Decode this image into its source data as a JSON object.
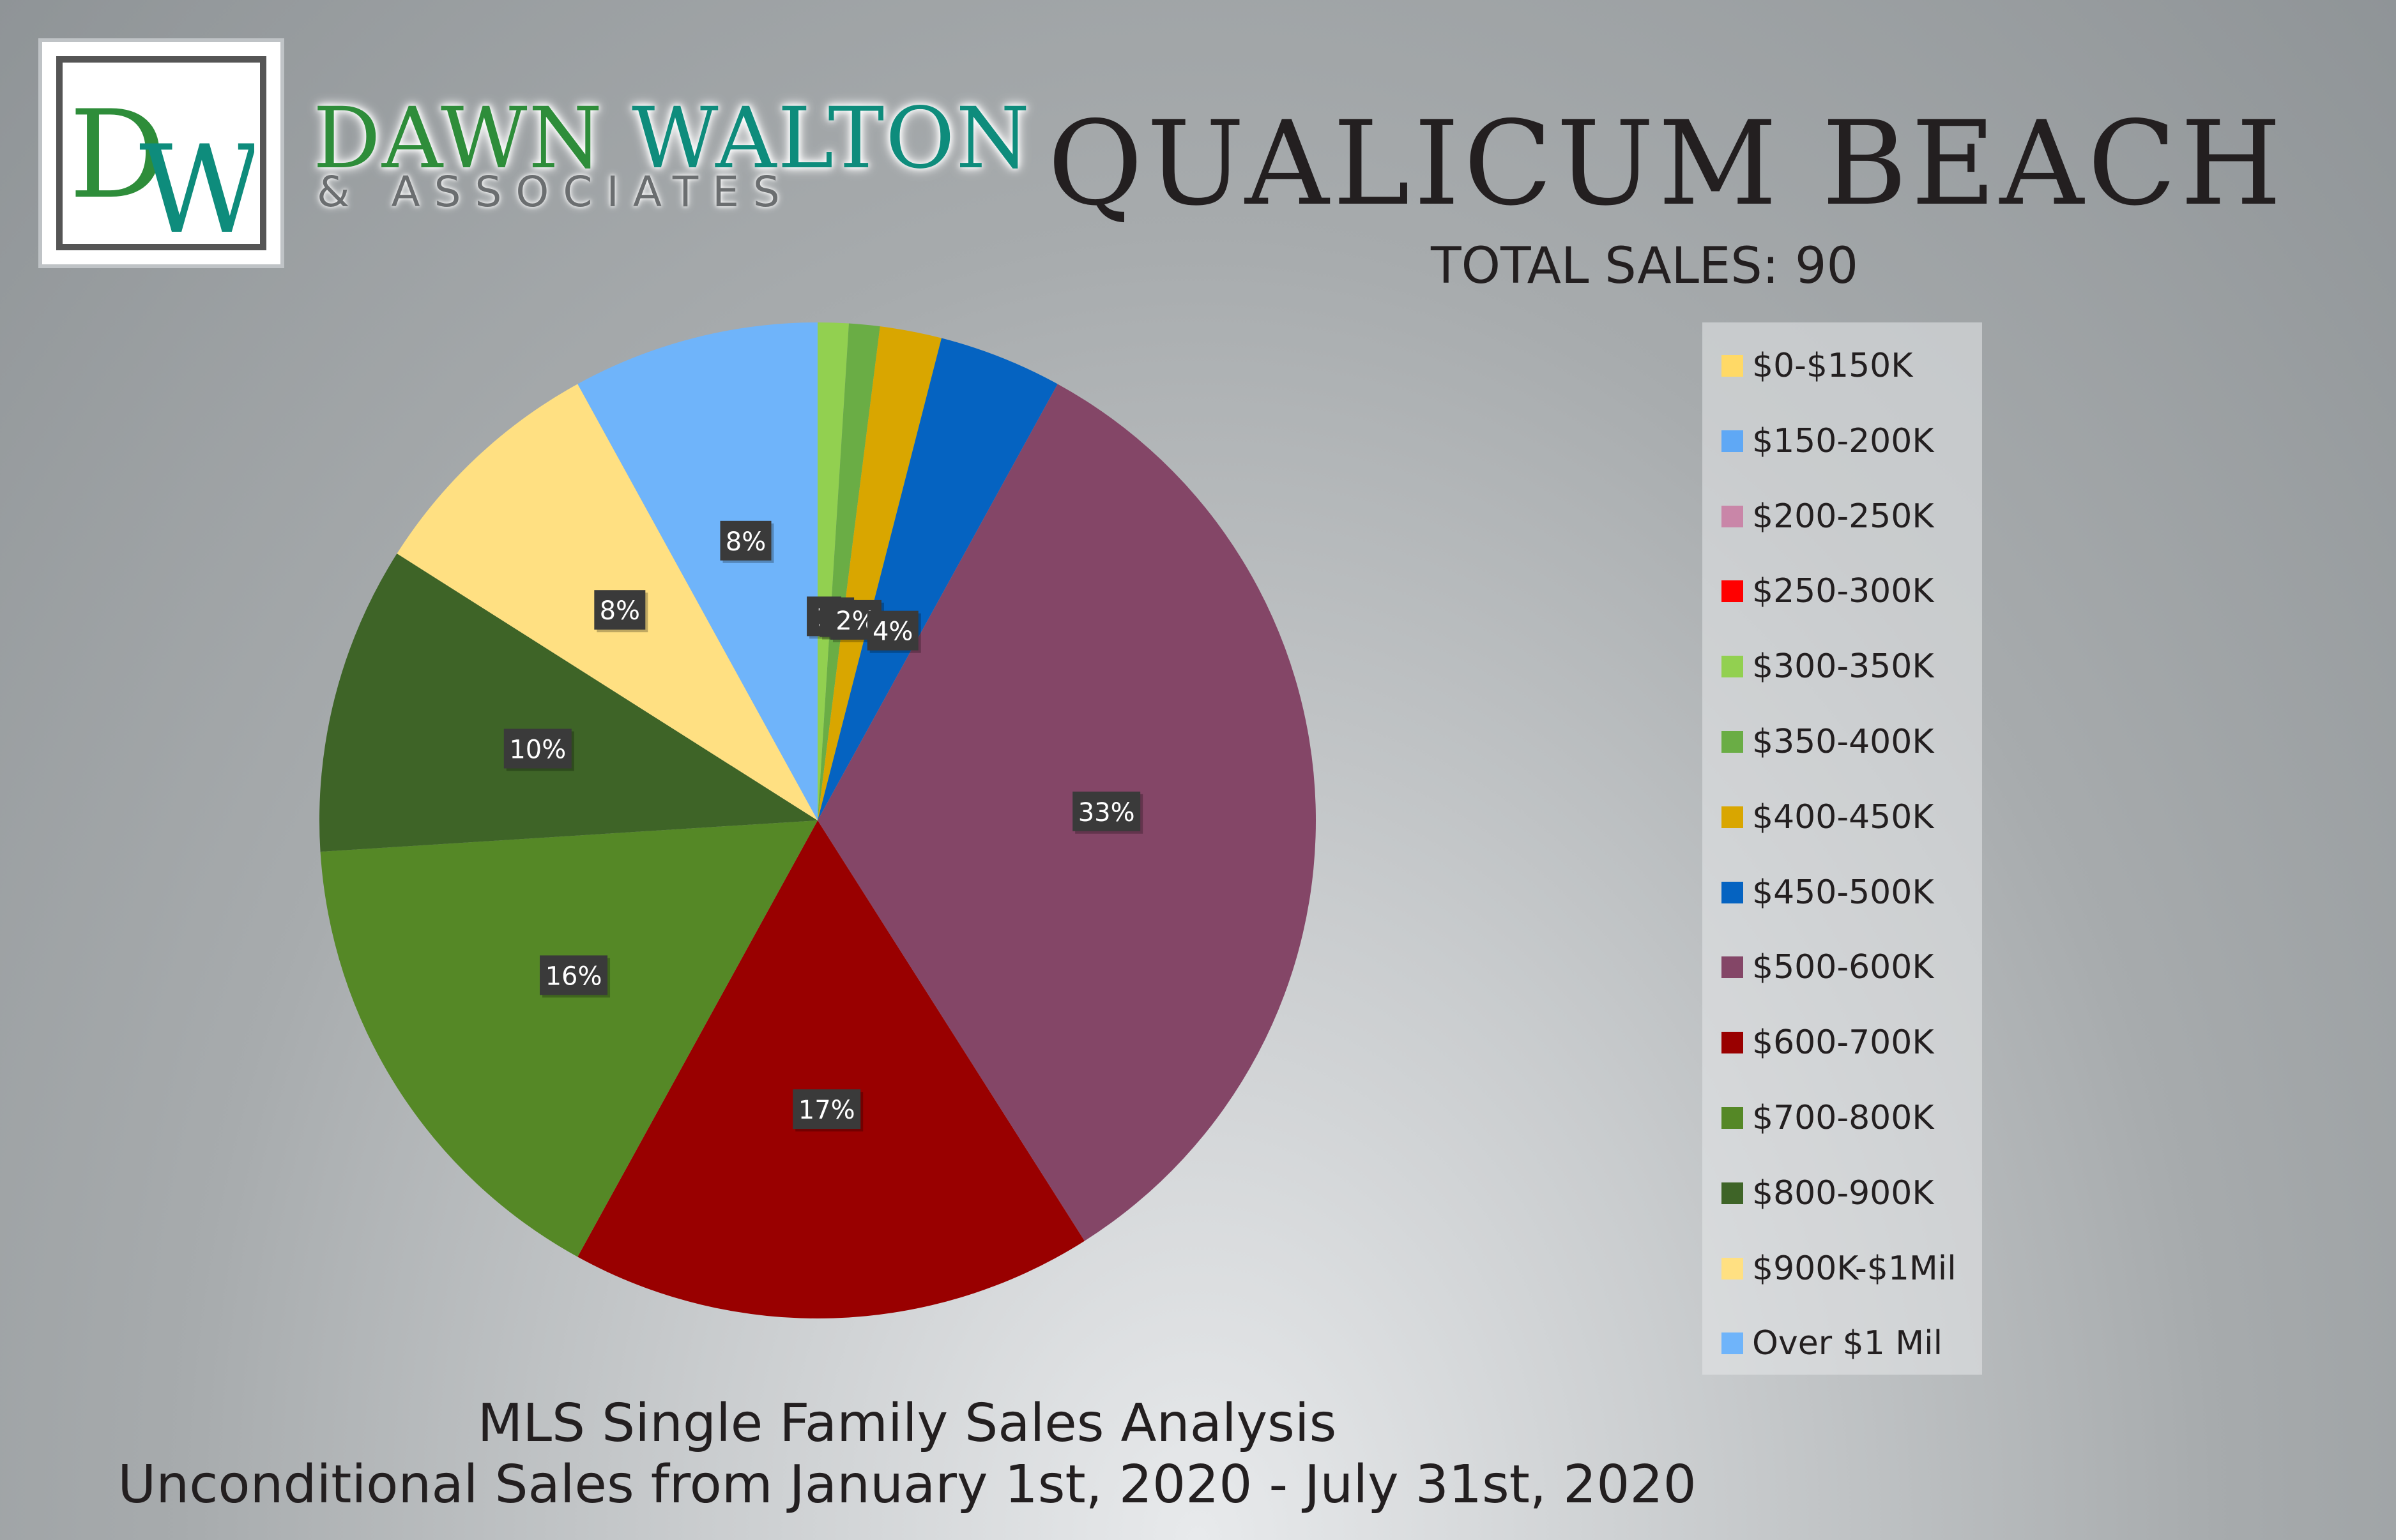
{
  "branding": {
    "logo_monogram": "DW",
    "name_part1": "DAWN ",
    "name_part2": "WALTON",
    "subtitle": "& ASSOCIATES",
    "colors": {
      "green": "#2e8d3a",
      "teal": "#0e8c7c"
    }
  },
  "header": {
    "city": "QUALICUM BEACH",
    "total_sales": "TOTAL SALES: 90"
  },
  "footer": {
    "line1": "MLS Single Family Sales Analysis",
    "line2": "Unconditional Sales from January 1st, 2020 - July 31st, 2020"
  },
  "chart_data": {
    "type": "pie",
    "title": "",
    "legend_position": "right",
    "categories": [
      "$0-$150K",
      "$150-200K",
      "$200-250K",
      "$250-300K",
      "$300-350K",
      "$350-400K",
      "$400-450K",
      "$450-500K",
      "$500-600K",
      "$600-700K",
      "$700-800K",
      "$800-900K",
      "$900K-$1Mil",
      "Over $1 Mil"
    ],
    "values": [
      0,
      0,
      0,
      0,
      1,
      1,
      2,
      4,
      33,
      17,
      16,
      10,
      8,
      8
    ],
    "data_labels": [
      "",
      "",
      "",
      "",
      "1",
      "1",
      "2%",
      "4%",
      "33%",
      "17%",
      "16%",
      "10%",
      "8%",
      "8%"
    ],
    "colors": [
      "#ffd966",
      "#5fa8f5",
      "#c986a8",
      "#ff0000",
      "#92d050",
      "#6aad45",
      "#d9a600",
      "#0563c1",
      "#844667",
      "#990000",
      "#558826",
      "#3e6427",
      "#ffe082",
      "#6fb4fa"
    ],
    "label_background": "#3a3a3a",
    "label_text_color": "#ffffff"
  }
}
